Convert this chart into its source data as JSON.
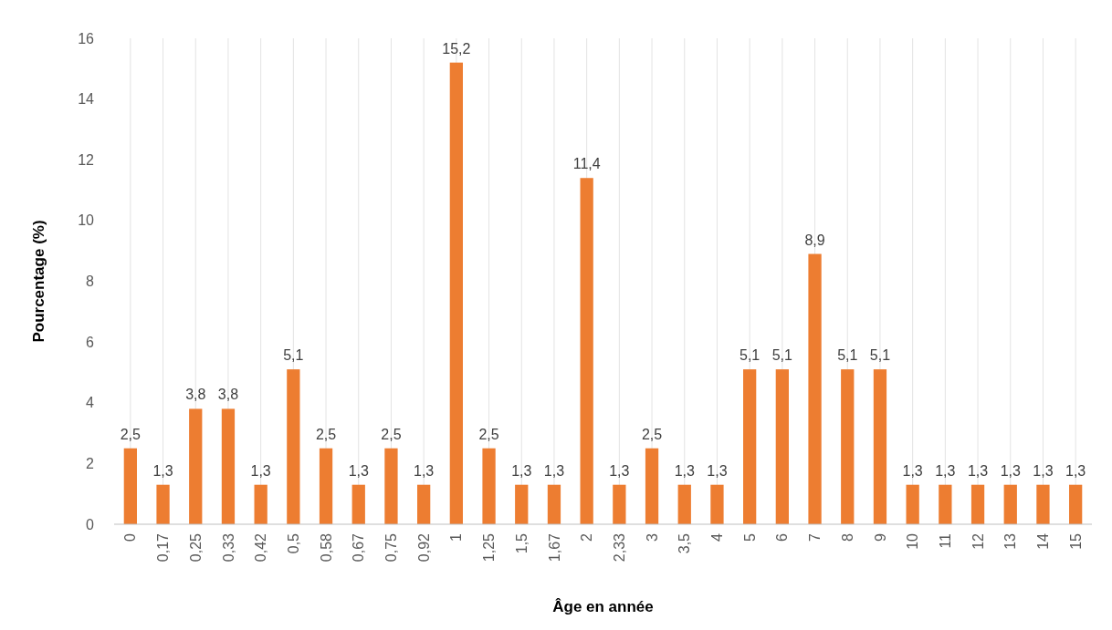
{
  "chart_data": {
    "type": "bar",
    "xlabel": "Âge en année",
    "ylabel": "Pourcentage (%)",
    "categories": [
      "0",
      "0,17",
      "0,25",
      "0,33",
      "0,42",
      "0,5",
      "0,58",
      "0,67",
      "0,75",
      "0,92",
      "1",
      "1,25",
      "1,5",
      "1,67",
      "2",
      "2,33",
      "3",
      "3,5",
      "4",
      "5",
      "6",
      "7",
      "8",
      "9",
      "10",
      "11",
      "12",
      "13",
      "14",
      "15"
    ],
    "values": [
      2.5,
      1.3,
      3.8,
      3.8,
      1.3,
      5.1,
      2.5,
      1.3,
      2.5,
      1.3,
      15.2,
      2.5,
      1.3,
      1.3,
      11.4,
      1.3,
      2.5,
      1.3,
      1.3,
      5.1,
      5.1,
      8.9,
      5.1,
      5.1,
      1.3,
      1.3,
      1.3,
      1.3,
      1.3,
      1.3
    ],
    "value_labels": [
      "2,5",
      "1,3",
      "3,8",
      "3,8",
      "1,3",
      "5,1",
      "2,5",
      "1,3",
      "2,5",
      "1,3",
      "15,2",
      "2,5",
      "1,3",
      "1,3",
      "11,4",
      "1,3",
      "2,5",
      "1,3",
      "1,3",
      "5,1",
      "5,1",
      "8,9",
      "5,1",
      "5,1",
      "1,3",
      "1,3",
      "1,3",
      "1,3",
      "1,3",
      "1,3"
    ],
    "color": "#ed7d31",
    "ylim": [
      0,
      16
    ],
    "yticks": [
      0,
      2,
      4,
      6,
      8,
      10,
      12,
      14,
      16
    ],
    "grid": "x"
  }
}
